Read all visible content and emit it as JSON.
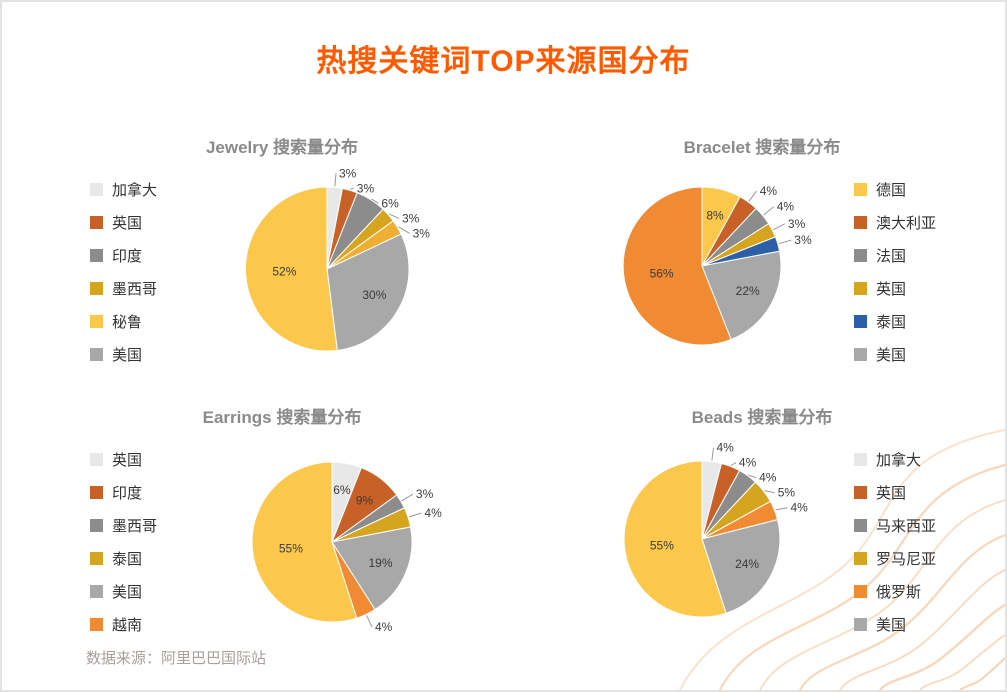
{
  "page": {
    "title": "热搜关键词TOP来源国分布",
    "title_color": "#FF5A00",
    "footer": "数据来源：阿里巴巴国际站"
  },
  "chart_data": [
    {
      "type": "pie",
      "title": "Jewelry 搜索量分布",
      "legend_position": "left",
      "legend": [
        {
          "label": "加拿大",
          "color": "#E8E8E8"
        },
        {
          "label": "英国",
          "color": "#C86127"
        },
        {
          "label": "印度",
          "color": "#8C8C8C"
        },
        {
          "label": "墨西哥",
          "color": "#D6A51F"
        },
        {
          "label": "秘鲁",
          "color": "#FCC84B"
        },
        {
          "label": "美国",
          "color": "#A8A8A8"
        }
      ],
      "slices": [
        {
          "label": "加拿大",
          "value": 3,
          "color": "#E8E8E8",
          "label_pos": "outside"
        },
        {
          "label": "英国",
          "value": 3,
          "color": "#C86127",
          "label_pos": "outside"
        },
        {
          "label": "印度",
          "value": 6,
          "color": "#8C8C8C",
          "label_pos": "outside"
        },
        {
          "label": "墨西哥",
          "value": 3,
          "color": "#D6A51F",
          "label_pos": "outside"
        },
        {
          "label": "",
          "value": 3,
          "color": "#EFAF34",
          "label_pos": "outside"
        },
        {
          "label": "美国",
          "value": 30,
          "color": "#A8A8A8",
          "label_pos": "inside"
        },
        {
          "label": "秘鲁",
          "value": 52,
          "color": "#FCC84B",
          "label_pos": "inside"
        }
      ]
    },
    {
      "type": "pie",
      "title": "Bracelet 搜索量分布",
      "legend_position": "right",
      "legend": [
        {
          "label": "德国",
          "color": "#FCC84B"
        },
        {
          "label": "澳大利亚",
          "color": "#C86127"
        },
        {
          "label": "法国",
          "color": "#8C8C8C"
        },
        {
          "label": "英国",
          "color": "#D6A51F"
        },
        {
          "label": "泰国",
          "color": "#2D5FA9"
        },
        {
          "label": "美国",
          "color": "#A8A8A8"
        }
      ],
      "slices": [
        {
          "label": "德国",
          "value": 8,
          "color": "#FCC84B",
          "label_pos": "inside"
        },
        {
          "label": "澳大利亚",
          "value": 4,
          "color": "#C86127",
          "label_pos": "outside"
        },
        {
          "label": "法国",
          "value": 4,
          "color": "#8C8C8C",
          "label_pos": "outside"
        },
        {
          "label": "英国",
          "value": 3,
          "color": "#D6A51F",
          "label_pos": "outside"
        },
        {
          "label": "泰国",
          "value": 3,
          "color": "#2D5FA9",
          "label_pos": "outside"
        },
        {
          "label": "美国",
          "value": 22,
          "color": "#A8A8A8",
          "label_pos": "inside"
        },
        {
          "label": "",
          "value": 56,
          "color": "#F08A33",
          "label_pos": "inside"
        }
      ]
    },
    {
      "type": "pie",
      "title": "Earrings 搜索量分布",
      "legend_position": "left",
      "legend": [
        {
          "label": "英国",
          "color": "#E8E8E8"
        },
        {
          "label": "印度",
          "color": "#C86127"
        },
        {
          "label": "墨西哥",
          "color": "#8C8C8C"
        },
        {
          "label": "泰国",
          "color": "#D6A51F"
        },
        {
          "label": "美国",
          "color": "#A8A8A8"
        },
        {
          "label": "越南",
          "color": "#F08A33"
        }
      ],
      "slices": [
        {
          "label": "英国",
          "value": 6,
          "color": "#E8E8E8",
          "label_pos": "inside"
        },
        {
          "label": "印度",
          "value": 9,
          "color": "#C86127",
          "label_pos": "inside"
        },
        {
          "label": "墨西哥",
          "value": 3,
          "color": "#8C8C8C",
          "label_pos": "outside"
        },
        {
          "label": "泰国",
          "value": 4,
          "color": "#D6A51F",
          "label_pos": "outside"
        },
        {
          "label": "美国",
          "value": 19,
          "color": "#A8A8A8",
          "label_pos": "inside"
        },
        {
          "label": "越南",
          "value": 4,
          "color": "#F08A33",
          "label_pos": "outside"
        },
        {
          "label": "",
          "value": 55,
          "color": "#FCC84B",
          "label_pos": "inside"
        }
      ]
    },
    {
      "type": "pie",
      "title": "Beads 搜索量分布",
      "legend_position": "right",
      "legend": [
        {
          "label": "加拿大",
          "color": "#E8E8E8"
        },
        {
          "label": "英国",
          "color": "#C86127"
        },
        {
          "label": "马来西亚",
          "color": "#8C8C8C"
        },
        {
          "label": "罗马尼亚",
          "color": "#D6A51F"
        },
        {
          "label": "俄罗斯",
          "color": "#F08A33"
        },
        {
          "label": "美国",
          "color": "#A8A8A8"
        }
      ],
      "slices": [
        {
          "label": "加拿大",
          "value": 4,
          "color": "#E8E8E8",
          "label_pos": "outside"
        },
        {
          "label": "英国",
          "value": 4,
          "color": "#C86127",
          "label_pos": "outside"
        },
        {
          "label": "马来西亚",
          "value": 4,
          "color": "#8C8C8C",
          "label_pos": "outside"
        },
        {
          "label": "罗马尼亚",
          "value": 5,
          "color": "#D6A51F",
          "label_pos": "outside"
        },
        {
          "label": "俄罗斯",
          "value": 4,
          "color": "#F08A33",
          "label_pos": "outside"
        },
        {
          "label": "美国",
          "value": 24,
          "color": "#A8A8A8",
          "label_pos": "inside"
        },
        {
          "label": "",
          "value": 55,
          "color": "#FCC84B",
          "label_pos": "inside"
        }
      ]
    }
  ]
}
